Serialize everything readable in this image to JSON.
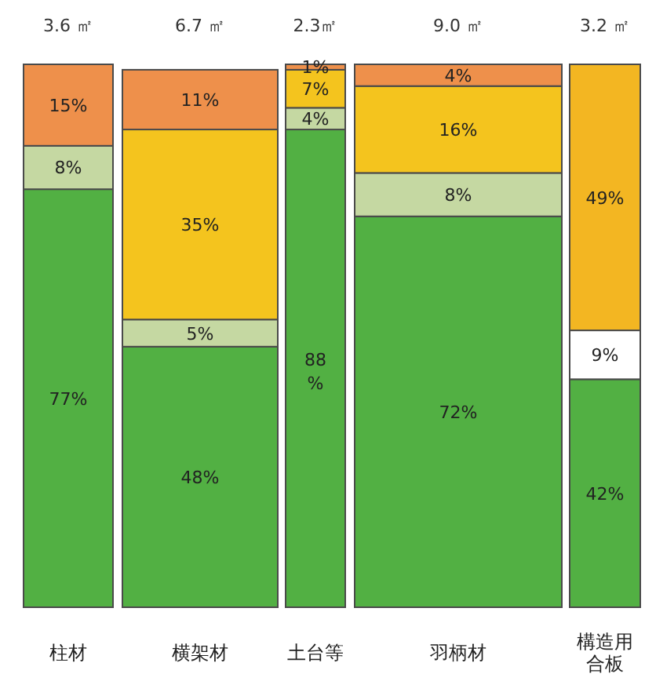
{
  "chart_data": {
    "type": "bar",
    "stacked": true,
    "ylim": [
      0,
      100
    ],
    "tick_labels": "x",
    "grid": false,
    "categories": [
      "柱材",
      "横架材",
      "土台等",
      "羽柄材",
      "構造用合板"
    ],
    "annotations": [
      "3.6 ㎡",
      "6.7 ㎡",
      "2.3㎡",
      "9.0 ㎡",
      "3.2 ㎡"
    ],
    "series": [
      {
        "color": "#52b043",
        "values": [
          77,
          48,
          88,
          72,
          42
        ],
        "value_labels": [
          "77%",
          "48%",
          "88%",
          "72%",
          "42%"
        ]
      },
      {
        "colors": [
          "#c5d8a2",
          "#c5d8a2",
          "#c5d8a2",
          "#c5d8a2",
          "#ffffff"
        ],
        "values": [
          8,
          5,
          4,
          8,
          9
        ],
        "value_labels": [
          "8%",
          "5%",
          "4%",
          "8%",
          "9%"
        ]
      },
      {
        "colors": [
          null,
          "#f4c41e",
          "#f4c41e",
          "#f4c41e",
          "#f3b622"
        ],
        "values": [
          null,
          35,
          7,
          16,
          49
        ],
        "value_labels": [
          null,
          "35%",
          "7%",
          "16%",
          "49%"
        ]
      },
      {
        "color": "#ee904b",
        "values": [
          15,
          11,
          1,
          4,
          null
        ],
        "value_labels": [
          "15%",
          "11%",
          "1%",
          "4%",
          null
        ]
      }
    ]
  }
}
